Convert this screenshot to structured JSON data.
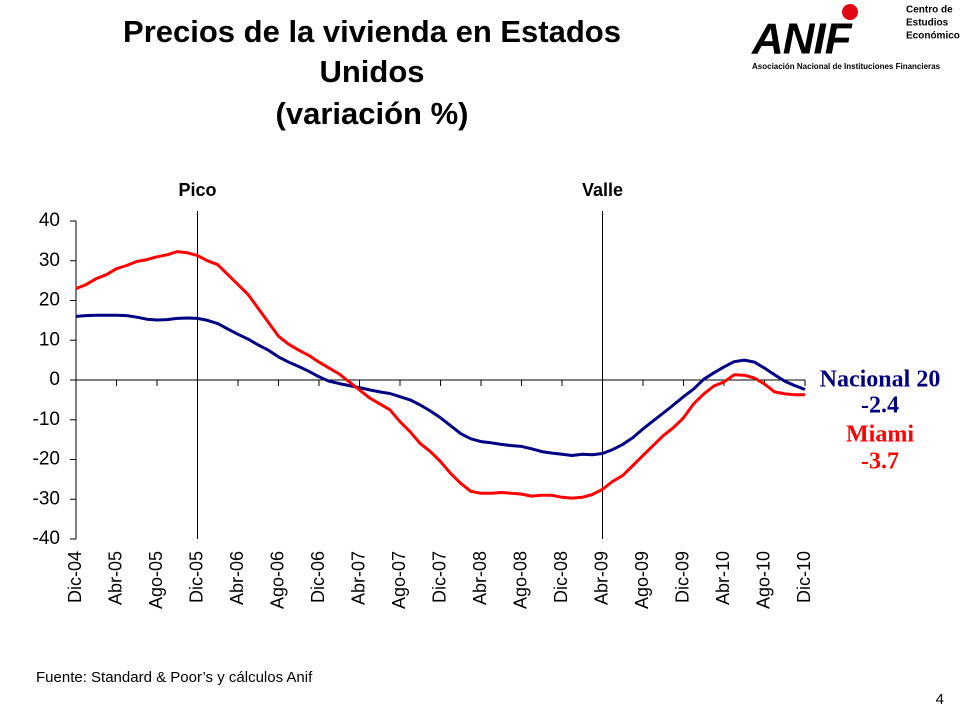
{
  "chart_data": {
    "type": "line",
    "title": [
      "Precios de la vivienda en Estados",
      "Unidos",
      "(variación %)"
    ],
    "categories": [
      "Dic-04",
      null,
      null,
      null,
      "Abr-05",
      null,
      null,
      null,
      "Ago-05",
      null,
      null,
      null,
      "Dic-05",
      null,
      null,
      null,
      "Abr-06",
      null,
      null,
      null,
      "Ago-06",
      null,
      null,
      null,
      "Dic-06",
      null,
      null,
      null,
      "Abr-07",
      null,
      null,
      null,
      "Ago-07",
      null,
      null,
      null,
      "Dic-07",
      null,
      null,
      null,
      "Abr-08",
      null,
      null,
      null,
      "Ago-08",
      null,
      null,
      null,
      "Dic-08",
      null,
      null,
      null,
      "Abr-09",
      null,
      null,
      null,
      "Ago-09",
      null,
      null,
      null,
      "Dic-09",
      null,
      null,
      null,
      "Abr-10",
      null,
      null,
      null,
      "Ago-10",
      null,
      null,
      null,
      "Dic-10"
    ],
    "series": [
      {
        "name": "Nacional 20",
        "color": "#000080",
        "values": [
          16.0,
          16.2,
          16.3,
          16.3,
          16.3,
          16.2,
          15.8,
          15.3,
          15.1,
          15.2,
          15.5,
          15.6,
          15.5,
          15.0,
          14.2,
          12.8,
          11.5,
          10.3,
          8.8,
          7.5,
          5.8,
          4.5,
          3.4,
          2.2,
          0.8,
          -0.3,
          -0.9,
          -1.4,
          -1.9,
          -2.5,
          -3.0,
          -3.4,
          -4.2,
          -5.0,
          -6.3,
          -7.8,
          -9.5,
          -11.5,
          -13.5,
          -14.8,
          -15.5,
          -15.8,
          -16.2,
          -16.5,
          -16.7,
          -17.3,
          -18.0,
          -18.4,
          -18.7,
          -19.0,
          -18.7,
          -18.8,
          -18.5,
          -17.5,
          -16.2,
          -14.5,
          -12.3,
          -10.3,
          -8.3,
          -6.3,
          -4.2,
          -2.3,
          0.2,
          1.8,
          3.3,
          4.6,
          5.0,
          4.5,
          3.0,
          1.3,
          -0.3,
          -1.4,
          -2.4
        ]
      },
      {
        "name": "Miami",
        "color": "#ff0000",
        "values": [
          23.0,
          24.0,
          25.5,
          26.5,
          28.0,
          28.8,
          29.8,
          30.3,
          31.0,
          31.5,
          32.3,
          32.0,
          31.3,
          30.0,
          29.0,
          26.5,
          24.0,
          21.5,
          18.0,
          14.5,
          11.0,
          9.0,
          7.5,
          6.2,
          4.5,
          3.0,
          1.5,
          -0.5,
          -2.5,
          -4.5,
          -6.0,
          -7.5,
          -10.5,
          -13.0,
          -16.0,
          -18.0,
          -20.5,
          -23.5,
          -26.0,
          -28.0,
          -28.5,
          -28.5,
          -28.3,
          -28.5,
          -28.7,
          -29.2,
          -29.0,
          -29.0,
          -29.5,
          -29.7,
          -29.5,
          -28.8,
          -27.5,
          -25.5,
          -24.0,
          -21.5,
          -19.0,
          -16.5,
          -14.0,
          -12.0,
          -9.5,
          -6.0,
          -3.5,
          -1.5,
          -0.5,
          1.3,
          1.2,
          0.5,
          -1.0,
          -3.0,
          -3.5,
          -3.7,
          -3.7
        ]
      }
    ],
    "ylim": [
      -40,
      40
    ],
    "yticks": [
      -40,
      -30,
      -20,
      -10,
      0,
      10,
      20,
      30,
      40
    ],
    "markers": [
      {
        "label": "Pico",
        "at": "Dic-05"
      },
      {
        "label": "Valle",
        "at": "Abr-09"
      }
    ],
    "annotations": [
      {
        "text": "Nacional 20",
        "color": "#000080"
      },
      {
        "text": "-2.4",
        "color": "#000080"
      },
      {
        "text": "Miami",
        "color": "#ff0000"
      },
      {
        "text": "-3.7",
        "color": "#ff0000"
      }
    ],
    "source": "Fuente: Standard & Poor’s y cálculos Anif"
  },
  "logo": {
    "name": "ANIF",
    "full_name": "Asociación Nacional de Instituciones Financieras",
    "unit": [
      "Centro de",
      "Estudios",
      "Económicos"
    ]
  },
  "page_number": "4"
}
